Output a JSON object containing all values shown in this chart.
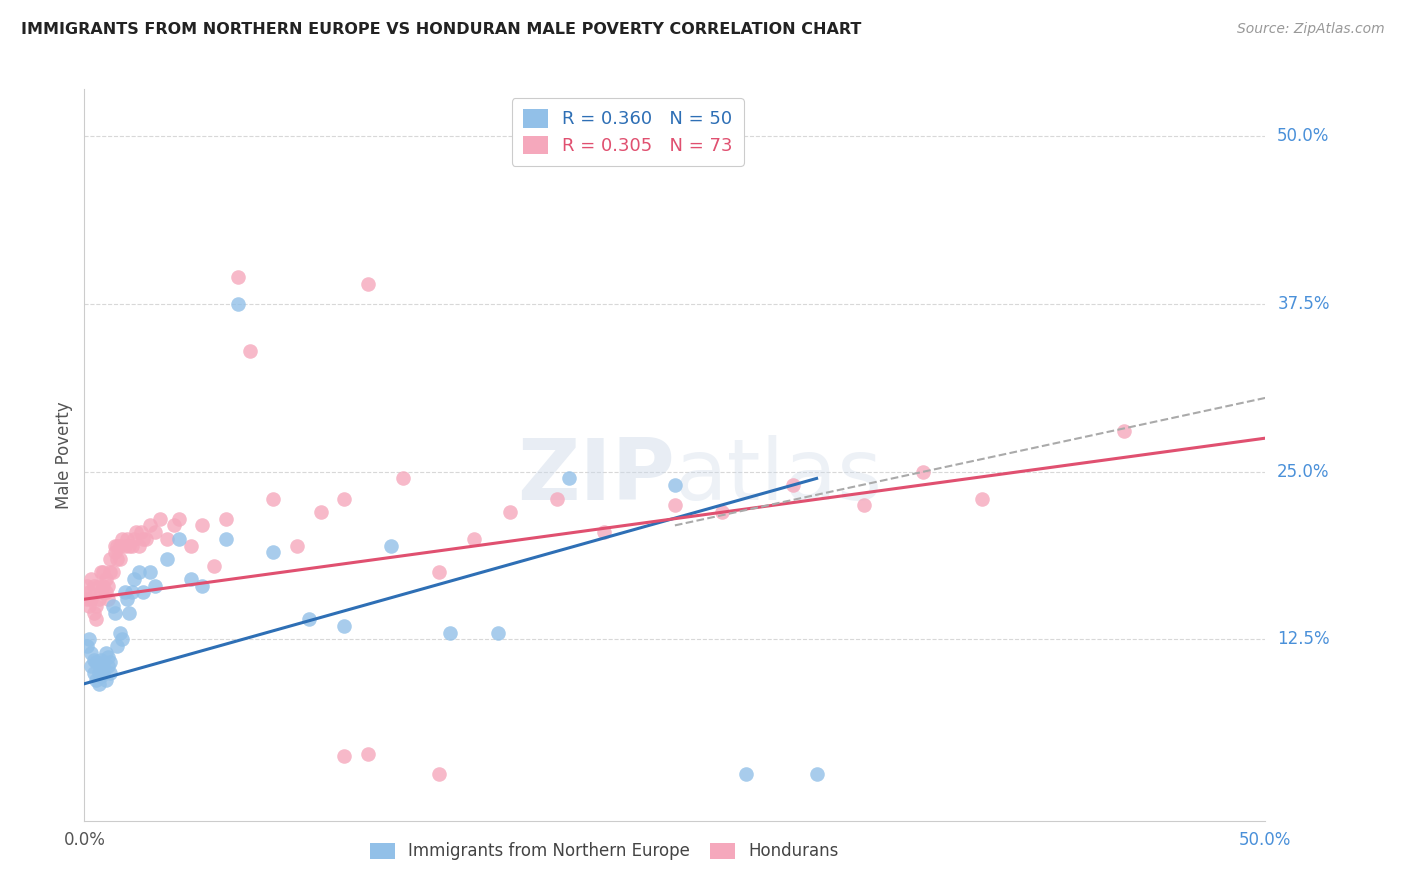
{
  "title": "IMMIGRANTS FROM NORTHERN EUROPE VS HONDURAN MALE POVERTY CORRELATION CHART",
  "source": "Source: ZipAtlas.com",
  "ylabel": "Male Poverty",
  "right_yticks": [
    "50.0%",
    "37.5%",
    "25.0%",
    "12.5%"
  ],
  "right_ytick_vals": [
    0.5,
    0.375,
    0.25,
    0.125
  ],
  "xlim": [
    0.0,
    0.5
  ],
  "ylim": [
    -0.01,
    0.535
  ],
  "watermark": "ZIPatlas",
  "blue_color": "#92c0e8",
  "pink_color": "#f5a8bc",
  "blue_line_color": "#2e6fb5",
  "pink_line_color": "#e05070",
  "dashed_line_color": "#aaaaaa",
  "background_color": "#ffffff",
  "grid_color": "#d8d8d8",
  "blue_x": [
    0.001,
    0.002,
    0.003,
    0.003,
    0.004,
    0.004,
    0.005,
    0.005,
    0.006,
    0.006,
    0.007,
    0.007,
    0.008,
    0.008,
    0.009,
    0.009,
    0.01,
    0.01,
    0.011,
    0.011,
    0.012,
    0.013,
    0.014,
    0.015,
    0.016,
    0.017,
    0.018,
    0.019,
    0.02,
    0.021,
    0.023,
    0.025,
    0.028,
    0.03,
    0.035,
    0.04,
    0.045,
    0.05,
    0.06,
    0.065,
    0.08,
    0.095,
    0.11,
    0.13,
    0.155,
    0.175,
    0.205,
    0.25,
    0.28,
    0.31
  ],
  "blue_y": [
    0.12,
    0.125,
    0.105,
    0.115,
    0.1,
    0.11,
    0.095,
    0.108,
    0.1,
    0.092,
    0.098,
    0.11,
    0.1,
    0.107,
    0.095,
    0.115,
    0.105,
    0.112,
    0.1,
    0.108,
    0.15,
    0.145,
    0.12,
    0.13,
    0.125,
    0.16,
    0.155,
    0.145,
    0.16,
    0.17,
    0.175,
    0.16,
    0.175,
    0.165,
    0.185,
    0.2,
    0.17,
    0.165,
    0.2,
    0.375,
    0.19,
    0.14,
    0.135,
    0.195,
    0.13,
    0.13,
    0.245,
    0.24,
    0.025,
    0.025
  ],
  "pink_x": [
    0.001,
    0.001,
    0.002,
    0.002,
    0.003,
    0.003,
    0.004,
    0.004,
    0.005,
    0.005,
    0.006,
    0.006,
    0.007,
    0.007,
    0.008,
    0.008,
    0.009,
    0.009,
    0.01,
    0.01,
    0.011,
    0.011,
    0.012,
    0.013,
    0.013,
    0.014,
    0.014,
    0.015,
    0.015,
    0.016,
    0.017,
    0.018,
    0.019,
    0.02,
    0.021,
    0.022,
    0.023,
    0.024,
    0.025,
    0.026,
    0.028,
    0.03,
    0.032,
    0.035,
    0.038,
    0.04,
    0.045,
    0.05,
    0.055,
    0.06,
    0.065,
    0.07,
    0.08,
    0.09,
    0.1,
    0.11,
    0.12,
    0.135,
    0.15,
    0.165,
    0.18,
    0.2,
    0.22,
    0.25,
    0.27,
    0.3,
    0.33,
    0.355,
    0.38,
    0.44,
    0.11,
    0.12,
    0.15
  ],
  "pink_y": [
    0.155,
    0.165,
    0.15,
    0.16,
    0.155,
    0.17,
    0.145,
    0.165,
    0.15,
    0.14,
    0.155,
    0.165,
    0.16,
    0.175,
    0.165,
    0.175,
    0.16,
    0.17,
    0.155,
    0.165,
    0.175,
    0.185,
    0.175,
    0.19,
    0.195,
    0.185,
    0.195,
    0.185,
    0.195,
    0.2,
    0.195,
    0.2,
    0.195,
    0.195,
    0.2,
    0.205,
    0.195,
    0.205,
    0.2,
    0.2,
    0.21,
    0.205,
    0.215,
    0.2,
    0.21,
    0.215,
    0.195,
    0.21,
    0.18,
    0.215,
    0.395,
    0.34,
    0.23,
    0.195,
    0.22,
    0.23,
    0.39,
    0.245,
    0.175,
    0.2,
    0.22,
    0.23,
    0.205,
    0.225,
    0.22,
    0.24,
    0.225,
    0.25,
    0.23,
    0.28,
    0.038,
    0.04,
    0.025
  ],
  "blue_trend_x": [
    0.0,
    0.31
  ],
  "blue_trend_y": [
    0.092,
    0.245
  ],
  "pink_trend_x": [
    0.0,
    0.5
  ],
  "pink_trend_y": [
    0.155,
    0.275
  ],
  "dashed_trend_x": [
    0.25,
    0.5
  ],
  "dashed_trend_y": [
    0.21,
    0.305
  ]
}
